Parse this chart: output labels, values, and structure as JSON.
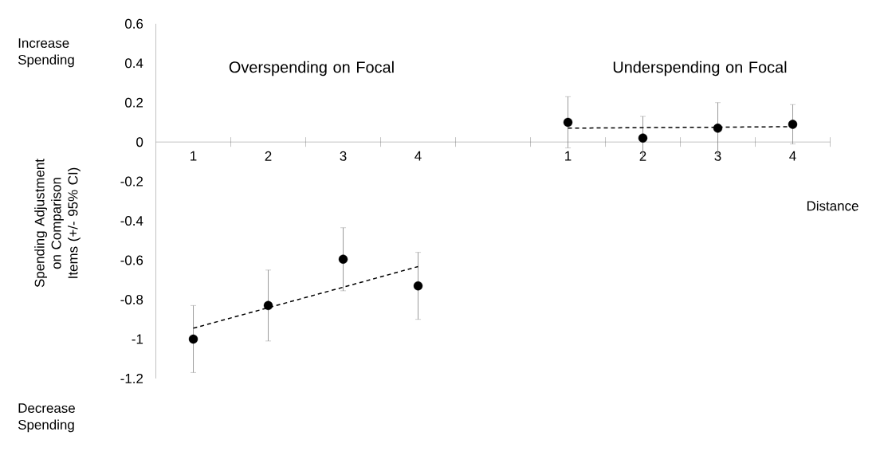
{
  "chart_data": {
    "type": "scatter",
    "xlabel": "Distance",
    "ylabel": "Spending Adjustment on Comparison Items (+/- 95% CI)",
    "categories": [
      "1",
      "2",
      "3",
      "4",
      null,
      "1",
      "2",
      "3",
      "4"
    ],
    "ylim": [
      -1.2,
      0.6
    ],
    "yticks": [
      -1.2,
      -1,
      -0.8,
      -0.6,
      -0.4,
      -0.2,
      0,
      0.2,
      0.4,
      0.6
    ],
    "annotations": [
      "Increase Spending",
      "Decrease Spending",
      "Overspending on Focal",
      "Underspending on Focal"
    ],
    "series": [
      {
        "color": "#000000",
        "marker": "circle",
        "values": [
          -1.0,
          -0.83,
          -0.595,
          -0.73,
          null,
          0.1,
          0.02,
          0.07,
          0.09
        ],
        "errors": [
          0.17,
          0.18,
          0.16,
          0.17,
          null,
          0.13,
          0.11,
          0.13,
          0.1
        ]
      },
      {
        "type": "line",
        "color": "#000000",
        "marker": "none",
        "line_style": "dashed",
        "values": [
          -0.945,
          -0.841,
          -0.737,
          -0.632,
          null,
          null,
          null,
          null,
          null
        ]
      },
      {
        "type": "line",
        "color": "#000000",
        "marker": "none",
        "line_style": "dashed",
        "values": [
          null,
          null,
          null,
          null,
          null,
          0.07,
          0.073,
          0.075,
          0.078
        ]
      }
    ]
  }
}
